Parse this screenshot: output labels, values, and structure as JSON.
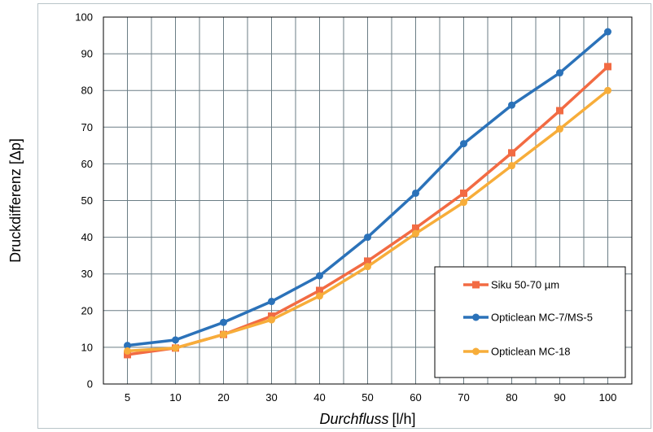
{
  "chart_data": {
    "type": "line",
    "categories": [
      "5",
      "10",
      "20",
      "30",
      "40",
      "50",
      "60",
      "70",
      "80",
      "90",
      "100"
    ],
    "xlabel": {
      "italic_part": "Durchfluss",
      "unit": "[l/h]"
    },
    "ylabel": "Druckdifferenz [Δp]",
    "ylim": [
      0,
      100
    ],
    "yticks": [
      "0",
      "10",
      "20",
      "30",
      "40",
      "50",
      "60",
      "70",
      "80",
      "90",
      "100"
    ],
    "grid": true,
    "legend_position": "bottom-right",
    "series": [
      {
        "name": "Siku 50-70 µm",
        "color": "#f26b43",
        "marker": "square",
        "values": [
          8,
          9.8,
          13.5,
          18.5,
          25.5,
          33.5,
          42.5,
          52,
          63,
          74.5,
          86.5
        ]
      },
      {
        "name": "Opticlean MC-7/MS-5",
        "color": "#2b72b9",
        "marker": "circle",
        "values": [
          10.5,
          12,
          16.8,
          22.5,
          29.5,
          40,
          52,
          65.5,
          76,
          84.8,
          96
        ]
      },
      {
        "name": "Opticlean MC-18",
        "color": "#f7ad3a",
        "marker": "circle",
        "values": [
          9,
          9.8,
          13.5,
          17.5,
          24,
          32,
          41,
          49.5,
          59.5,
          69.5,
          80
        ]
      }
    ]
  }
}
